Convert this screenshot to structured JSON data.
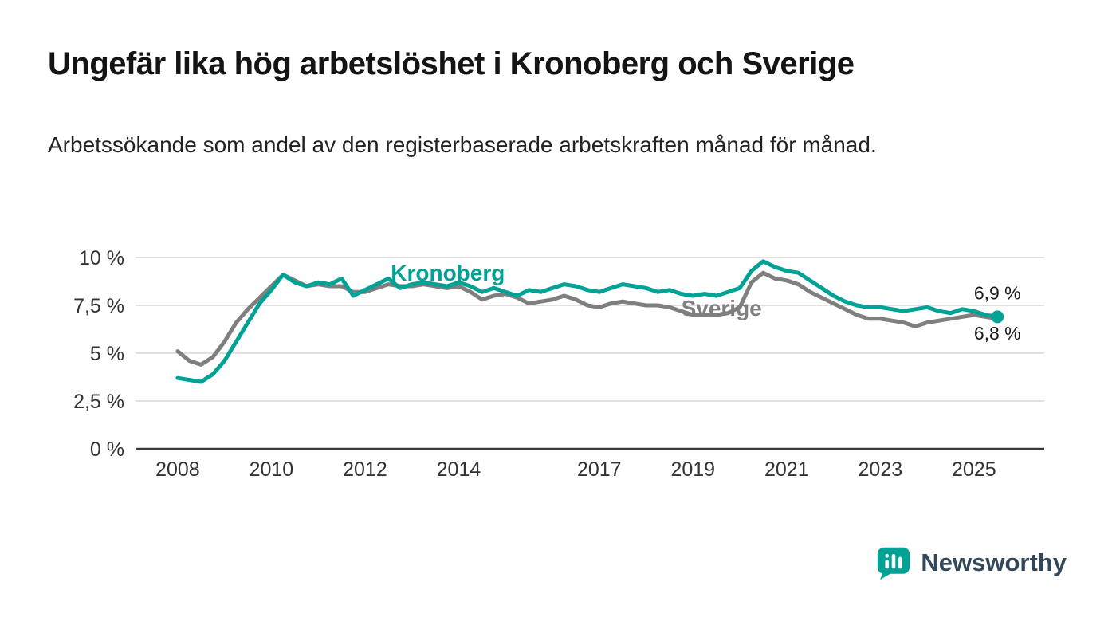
{
  "chart_data": {
    "type": "line",
    "title": "Ungefär lika hög arbetslöshet i Kronoberg och Sverige",
    "subtitle": "Arbetssökande som andel av den registerbaserade arbetskraften månad för månad.",
    "unit": "%",
    "xlim": [
      2007.1,
      2026.5
    ],
    "ylim": [
      0,
      10
    ],
    "grid": "horizontal-only",
    "legend": "inline-series-labels",
    "x_ticks": [
      2008,
      2010,
      2012,
      2014,
      2017,
      2019,
      2021,
      2023,
      2025
    ],
    "x_tick_labels": [
      "2008",
      "2010",
      "2012",
      "2014",
      "2017",
      "2019",
      "2021",
      "2023",
      "2025"
    ],
    "y_ticks": [
      0,
      2.5,
      5,
      7.5,
      10
    ],
    "y_tick_labels": [
      "0 %",
      "2,5 %",
      "5 %",
      "7,5 %",
      "10 %"
    ],
    "axis_color": "#333333",
    "gridline_color": "#cfcfcf",
    "x": [
      2008,
      2008.25,
      2008.5,
      2008.75,
      2009,
      2009.25,
      2009.5,
      2009.75,
      2010,
      2010.25,
      2010.5,
      2010.75,
      2011,
      2011.25,
      2011.5,
      2011.75,
      2012,
      2012.25,
      2012.5,
      2012.75,
      2013,
      2013.25,
      2013.5,
      2013.75,
      2014,
      2014.25,
      2014.5,
      2014.75,
      2015,
      2015.25,
      2015.5,
      2015.75,
      2016,
      2016.25,
      2016.5,
      2016.75,
      2017,
      2017.25,
      2017.5,
      2017.75,
      2018,
      2018.25,
      2018.5,
      2018.75,
      2019,
      2019.25,
      2019.5,
      2019.75,
      2020,
      2020.25,
      2020.5,
      2020.75,
      2021,
      2021.25,
      2021.5,
      2021.75,
      2022,
      2022.25,
      2022.5,
      2022.75,
      2023,
      2023.25,
      2023.5,
      2023.75,
      2024,
      2024.25,
      2024.5,
      2024.75,
      2025,
      2025.25,
      2025.5
    ],
    "series": [
      {
        "name": "Sverige",
        "color": "#7f7f7f",
        "end_label": "6,8 %",
        "end_label_dy": 26,
        "end_dot": false,
        "label_pos": {
          "x": 2018.75,
          "y": 6.95
        },
        "values": [
          5.1,
          4.6,
          4.4,
          4.8,
          5.6,
          6.6,
          7.3,
          7.9,
          8.5,
          9.1,
          8.8,
          8.5,
          8.6,
          8.5,
          8.5,
          8.2,
          8.2,
          8.4,
          8.6,
          8.5,
          8.5,
          8.6,
          8.5,
          8.4,
          8.5,
          8.2,
          7.8,
          8.0,
          8.1,
          7.9,
          7.6,
          7.7,
          7.8,
          8.0,
          7.8,
          7.5,
          7.4,
          7.6,
          7.7,
          7.6,
          7.5,
          7.5,
          7.4,
          7.2,
          7.0,
          7.0,
          7.0,
          7.1,
          7.4,
          8.7,
          9.2,
          8.9,
          8.8,
          8.6,
          8.2,
          7.9,
          7.6,
          7.3,
          7.0,
          6.8,
          6.8,
          6.7,
          6.6,
          6.4,
          6.6,
          6.7,
          6.8,
          6.9,
          7.0,
          6.9,
          6.8
        ]
      },
      {
        "name": "Kronoberg",
        "color": "#00a296",
        "end_label": "6,9 %",
        "end_label_dy": -22,
        "end_dot": true,
        "label_pos": {
          "x": 2012.55,
          "y": 8.8
        },
        "values": [
          3.7,
          3.6,
          3.5,
          3.9,
          4.6,
          5.6,
          6.6,
          7.6,
          8.3,
          9.1,
          8.7,
          8.5,
          8.7,
          8.6,
          8.9,
          8.0,
          8.3,
          8.6,
          8.9,
          8.4,
          8.6,
          8.7,
          8.6,
          8.5,
          8.7,
          8.5,
          8.2,
          8.4,
          8.2,
          8.0,
          8.3,
          8.2,
          8.4,
          8.6,
          8.5,
          8.3,
          8.2,
          8.4,
          8.6,
          8.5,
          8.4,
          8.2,
          8.3,
          8.1,
          8.0,
          8.1,
          8.0,
          8.2,
          8.4,
          9.3,
          9.8,
          9.5,
          9.3,
          9.2,
          8.8,
          8.4,
          8.0,
          7.7,
          7.5,
          7.4,
          7.4,
          7.3,
          7.2,
          7.3,
          7.4,
          7.2,
          7.1,
          7.3,
          7.2,
          7.0,
          6.9
        ]
      }
    ]
  },
  "branding": {
    "logo_text": "Newsworthy",
    "icon": "bar-chart-speech-bubble-icon",
    "icon_color": "#00a296",
    "wordmark_color": "#33475b"
  }
}
